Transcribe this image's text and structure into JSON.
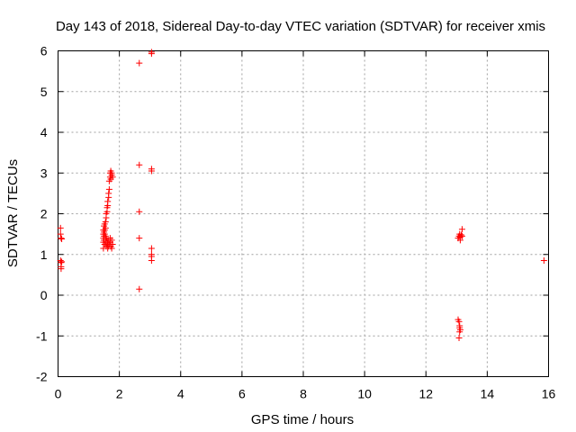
{
  "chart_data": {
    "type": "scatter",
    "title": "Day 143 of 2018, Sidereal Day-to-day VTEC variation (SDTVAR) for receiver xmis",
    "xlabel": "GPS time / hours",
    "ylabel": "SDTVAR / TECUs",
    "xlim": [
      0,
      16
    ],
    "ylim": [
      -2,
      6
    ],
    "xticks": [
      "0",
      "2",
      "4",
      "6",
      "8",
      "10",
      "12",
      "14",
      "16"
    ],
    "yticks": [
      "-2",
      "-1",
      "0",
      "1",
      "2",
      "3",
      "4",
      "5",
      "6"
    ],
    "grid": true,
    "marker": "plus",
    "color": "#ff0000",
    "series": [
      {
        "points": [
          [
            0.08,
            1.65
          ],
          [
            0.08,
            1.5
          ],
          [
            0.1,
            1.4
          ],
          [
            0.12,
            1.38
          ],
          [
            0.08,
            0.85
          ],
          [
            0.1,
            0.8
          ],
          [
            0.12,
            0.82
          ],
          [
            0.1,
            0.7
          ],
          [
            0.1,
            0.65
          ],
          [
            1.48,
            1.15
          ],
          [
            1.48,
            1.3
          ],
          [
            1.48,
            1.4
          ],
          [
            1.48,
            1.5
          ],
          [
            1.48,
            1.6
          ],
          [
            1.5,
            1.35
          ],
          [
            1.5,
            1.45
          ],
          [
            1.5,
            1.55
          ],
          [
            1.5,
            1.7
          ],
          [
            1.52,
            1.25
          ],
          [
            1.52,
            1.5
          ],
          [
            1.52,
            1.6
          ],
          [
            1.52,
            1.75
          ],
          [
            1.55,
            1.3
          ],
          [
            1.55,
            1.45
          ],
          [
            1.55,
            1.65
          ],
          [
            1.55,
            1.8
          ],
          [
            1.57,
            1.2
          ],
          [
            1.57,
            1.4
          ],
          [
            1.57,
            1.9
          ],
          [
            1.57,
            2.0
          ],
          [
            1.6,
            1.25
          ],
          [
            1.6,
            1.35
          ],
          [
            1.6,
            2.05
          ],
          [
            1.6,
            2.15
          ],
          [
            1.62,
            1.15
          ],
          [
            1.62,
            1.3
          ],
          [
            1.62,
            2.2
          ],
          [
            1.62,
            2.3
          ],
          [
            1.65,
            1.2
          ],
          [
            1.65,
            1.35
          ],
          [
            1.65,
            2.4
          ],
          [
            1.65,
            2.5
          ],
          [
            1.67,
            1.25
          ],
          [
            1.67,
            2.6
          ],
          [
            1.67,
            2.8
          ],
          [
            1.7,
            1.3
          ],
          [
            1.7,
            1.4
          ],
          [
            1.7,
            2.9
          ],
          [
            1.7,
            3.0
          ],
          [
            1.72,
            1.2
          ],
          [
            1.72,
            2.85
          ],
          [
            1.72,
            3.05
          ],
          [
            1.75,
            1.15
          ],
          [
            1.75,
            1.35
          ],
          [
            1.75,
            2.95
          ],
          [
            1.75,
            3.0
          ],
          [
            1.78,
            1.25
          ],
          [
            1.78,
            2.9
          ],
          [
            2.65,
            5.7
          ],
          [
            2.65,
            3.2
          ],
          [
            2.65,
            2.05
          ],
          [
            2.65,
            1.4
          ],
          [
            2.65,
            0.15
          ],
          [
            3.05,
            5.97
          ],
          [
            3.05,
            5.93
          ],
          [
            3.05,
            3.1
          ],
          [
            3.05,
            3.05
          ],
          [
            3.05,
            1.15
          ],
          [
            3.05,
            1.0
          ],
          [
            3.05,
            0.95
          ],
          [
            3.05,
            0.85
          ],
          [
            13.05,
            -0.6
          ],
          [
            13.08,
            -0.65
          ],
          [
            13.1,
            -0.75
          ],
          [
            13.1,
            -0.8
          ],
          [
            13.12,
            -0.85
          ],
          [
            13.1,
            -0.9
          ],
          [
            13.08,
            -1.05
          ],
          [
            13.05,
            1.4
          ],
          [
            13.08,
            1.45
          ],
          [
            13.1,
            1.5
          ],
          [
            13.12,
            1.42
          ],
          [
            13.12,
            1.35
          ],
          [
            13.15,
            1.48
          ],
          [
            13.18,
            1.45
          ],
          [
            13.18,
            1.62
          ],
          [
            15.85,
            0.85
          ]
        ]
      }
    ]
  }
}
